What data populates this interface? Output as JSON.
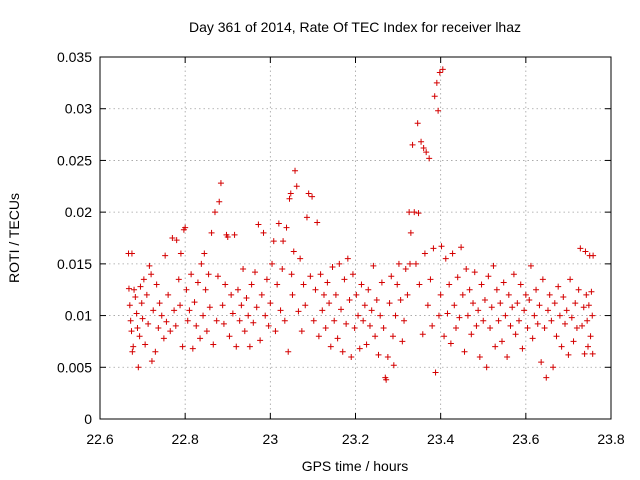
{
  "chart_data": {
    "type": "scatter",
    "title": "Day 361 of 2014, Rate Of TEC Index for receiver lhaz",
    "xlabel": "GPS time / hours",
    "ylabel": "ROTI / TECUs",
    "xlim": [
      22.6,
      23.8
    ],
    "ylim": [
      0,
      0.035
    ],
    "xticks": [
      "22.6",
      "22.8",
      "23",
      "23.2",
      "23.4",
      "23.6",
      "23.8"
    ],
    "yticks": [
      "0",
      "0.005",
      "0.01",
      "0.015",
      "0.02",
      "0.025",
      "0.03",
      "0.035"
    ],
    "grid": true,
    "marker": "+",
    "color": "#d40000",
    "series": [
      {
        "name": "ROTI",
        "points": [
          [
            22.667,
            0.016
          ],
          [
            22.675,
            0.016
          ],
          [
            22.668,
            0.0126
          ],
          [
            22.67,
            0.011
          ],
          [
            22.672,
            0.0095
          ],
          [
            22.674,
            0.0085
          ],
          [
            22.676,
            0.0065
          ],
          [
            22.678,
            0.007
          ],
          [
            22.68,
            0.0125
          ],
          [
            22.683,
            0.0118
          ],
          [
            22.686,
            0.0102
          ],
          [
            22.688,
            0.0088
          ],
          [
            22.69,
            0.005
          ],
          [
            22.693,
            0.008
          ],
          [
            22.695,
            0.0128
          ],
          [
            22.698,
            0.0112
          ],
          [
            22.7,
            0.0097
          ],
          [
            22.703,
            0.0135
          ],
          [
            22.706,
            0.0072
          ],
          [
            22.71,
            0.012
          ],
          [
            22.713,
            0.0092
          ],
          [
            22.716,
            0.0148
          ],
          [
            22.72,
            0.014
          ],
          [
            22.722,
            0.0056
          ],
          [
            22.725,
            0.0105
          ],
          [
            22.73,
            0.0065
          ],
          [
            22.733,
            0.013
          ],
          [
            22.737,
            0.0088
          ],
          [
            22.74,
            0.0112
          ],
          [
            22.745,
            0.01
          ],
          [
            22.75,
            0.0078
          ],
          [
            22.753,
            0.0158
          ],
          [
            22.756,
            0.0094
          ],
          [
            22.76,
            0.012
          ],
          [
            22.765,
            0.0085
          ],
          [
            22.77,
            0.0175
          ],
          [
            22.774,
            0.0105
          ],
          [
            22.778,
            0.009
          ],
          [
            22.78,
            0.0173
          ],
          [
            22.785,
            0.0135
          ],
          [
            22.788,
            0.011
          ],
          [
            22.79,
            0.016
          ],
          [
            22.794,
            0.007
          ],
          [
            22.797,
            0.0183
          ],
          [
            22.8,
            0.0185
          ],
          [
            22.803,
            0.0125
          ],
          [
            22.806,
            0.0095
          ],
          [
            22.81,
            0.0105
          ],
          [
            22.814,
            0.014
          ],
          [
            22.818,
            0.0068
          ],
          [
            22.822,
            0.0113
          ],
          [
            22.826,
            0.009
          ],
          [
            22.83,
            0.0132
          ],
          [
            22.835,
            0.0078
          ],
          [
            22.838,
            0.015
          ],
          [
            22.842,
            0.01
          ],
          [
            22.845,
            0.016
          ],
          [
            22.848,
            0.0125
          ],
          [
            22.851,
            0.0085
          ],
          [
            22.855,
            0.014
          ],
          [
            22.858,
            0.0108
          ],
          [
            22.862,
            0.018
          ],
          [
            22.866,
            0.0072
          ],
          [
            22.87,
            0.02
          ],
          [
            22.874,
            0.0095
          ],
          [
            22.877,
            0.0138
          ],
          [
            22.88,
            0.021
          ],
          [
            22.884,
            0.0228
          ],
          [
            22.888,
            0.011
          ],
          [
            22.891,
            0.0092
          ],
          [
            22.894,
            0.013
          ],
          [
            22.897,
            0.0178
          ],
          [
            22.9,
            0.0176
          ],
          [
            22.904,
            0.008
          ],
          [
            22.908,
            0.012
          ],
          [
            22.912,
            0.0102
          ],
          [
            22.916,
            0.0178
          ],
          [
            22.92,
            0.007
          ],
          [
            22.924,
            0.0125
          ],
          [
            22.928,
            0.0095
          ],
          [
            22.932,
            0.011
          ],
          [
            22.936,
            0.0145
          ],
          [
            22.94,
            0.0085
          ],
          [
            22.944,
            0.0117
          ],
          [
            22.948,
            0.01
          ],
          [
            22.952,
            0.007
          ],
          [
            22.956,
            0.013
          ],
          [
            22.96,
            0.0093
          ],
          [
            22.964,
            0.0142
          ],
          [
            22.968,
            0.0108
          ],
          [
            22.972,
            0.0188
          ],
          [
            22.976,
            0.0076
          ],
          [
            22.98,
            0.012
          ],
          [
            22.984,
            0.018
          ],
          [
            22.988,
            0.01
          ],
          [
            22.992,
            0.0135
          ],
          [
            22.996,
            0.009
          ],
          [
            23.0,
            0.0112
          ],
          [
            23.004,
            0.015
          ],
          [
            23.008,
            0.0172
          ],
          [
            23.012,
            0.0085
          ],
          [
            23.016,
            0.013
          ],
          [
            23.02,
            0.0189
          ],
          [
            23.024,
            0.0105
          ],
          [
            23.028,
            0.0145
          ],
          [
            23.03,
            0.0172
          ],
          [
            23.034,
            0.0095
          ],
          [
            23.038,
            0.0185
          ],
          [
            23.042,
            0.0065
          ],
          [
            23.045,
            0.0213
          ],
          [
            23.048,
            0.0218
          ],
          [
            23.05,
            0.014
          ],
          [
            23.052,
            0.012
          ],
          [
            23.055,
            0.0162
          ],
          [
            23.058,
            0.024
          ],
          [
            23.062,
            0.0225
          ],
          [
            23.066,
            0.0104
          ],
          [
            23.07,
            0.0155
          ],
          [
            23.074,
            0.0085
          ],
          [
            23.078,
            0.013
          ],
          [
            23.082,
            0.011
          ],
          [
            23.086,
            0.0195
          ],
          [
            23.09,
            0.0218
          ],
          [
            23.094,
            0.0138
          ],
          [
            23.098,
            0.0215
          ],
          [
            23.102,
            0.0095
          ],
          [
            23.106,
            0.0125
          ],
          [
            23.11,
            0.019
          ],
          [
            23.114,
            0.008
          ],
          [
            23.118,
            0.014
          ],
          [
            23.122,
            0.0105
          ],
          [
            23.126,
            0.012
          ],
          [
            23.13,
            0.0088
          ],
          [
            23.134,
            0.0132
          ],
          [
            23.138,
            0.0112
          ],
          [
            23.142,
            0.007
          ],
          [
            23.146,
            0.0147
          ],
          [
            23.15,
            0.0095
          ],
          [
            23.154,
            0.012
          ],
          [
            23.158,
            0.0078
          ],
          [
            23.162,
            0.015
          ],
          [
            23.166,
            0.0106
          ],
          [
            23.17,
            0.0065
          ],
          [
            23.174,
            0.0135
          ],
          [
            23.178,
            0.0092
          ],
          [
            23.182,
            0.0155
          ],
          [
            23.186,
            0.0115
          ],
          [
            23.19,
            0.006
          ],
          [
            23.194,
            0.014
          ],
          [
            23.198,
            0.0088
          ],
          [
            23.202,
            0.012
          ],
          [
            23.206,
            0.01
          ],
          [
            23.21,
            0.0068
          ],
          [
            23.214,
            0.013
          ],
          [
            23.218,
            0.0095
          ],
          [
            23.222,
            0.011
          ],
          [
            23.226,
            0.0072
          ],
          [
            23.23,
            0.0125
          ],
          [
            23.234,
            0.009
          ],
          [
            23.238,
            0.0105
          ],
          [
            23.242,
            0.0148
          ],
          [
            23.246,
            0.008
          ],
          [
            23.25,
            0.0115
          ],
          [
            23.254,
            0.0062
          ],
          [
            23.258,
            0.01
          ],
          [
            23.262,
            0.0132
          ],
          [
            23.266,
            0.0088
          ],
          [
            23.27,
            0.004
          ],
          [
            23.272,
            0.0038
          ],
          [
            23.276,
            0.006
          ],
          [
            23.28,
            0.0112
          ],
          [
            23.284,
            0.0138
          ],
          [
            23.288,
            0.008
          ],
          [
            23.29,
            0.0052
          ],
          [
            23.294,
            0.01
          ],
          [
            23.298,
            0.013
          ],
          [
            23.302,
            0.015
          ],
          [
            23.306,
            0.0115
          ],
          [
            23.31,
            0.0075
          ],
          [
            23.314,
            0.0095
          ],
          [
            23.318,
            0.0145
          ],
          [
            23.322,
            0.012
          ],
          [
            23.326,
            0.02
          ],
          [
            23.328,
            0.015
          ],
          [
            23.33,
            0.018
          ],
          [
            23.334,
            0.0265
          ],
          [
            23.338,
            0.02
          ],
          [
            23.342,
            0.015
          ],
          [
            23.346,
            0.0286
          ],
          [
            23.348,
            0.0199
          ],
          [
            23.35,
            0.013
          ],
          [
            23.354,
            0.0268
          ],
          [
            23.358,
            0.0082
          ],
          [
            23.36,
            0.0262
          ],
          [
            23.363,
            0.016
          ],
          [
            23.366,
            0.0258
          ],
          [
            23.37,
            0.011
          ],
          [
            23.373,
            0.0252
          ],
          [
            23.376,
            0.0135
          ],
          [
            23.38,
            0.009
          ],
          [
            23.383,
            0.0165
          ],
          [
            23.386,
            0.0312
          ],
          [
            23.388,
            0.0045
          ],
          [
            23.391,
            0.0325
          ],
          [
            23.394,
            0.0298
          ],
          [
            23.396,
            0.01
          ],
          [
            23.398,
            0.0335
          ],
          [
            23.4,
            0.012
          ],
          [
            23.402,
            0.0167
          ],
          [
            23.405,
            0.0338
          ],
          [
            23.408,
            0.008
          ],
          [
            23.412,
            0.0155
          ],
          [
            23.416,
            0.0102
          ],
          [
            23.42,
            0.013
          ],
          [
            23.424,
            0.0073
          ],
          [
            23.428,
            0.016
          ],
          [
            23.432,
            0.011
          ],
          [
            23.436,
            0.0088
          ],
          [
            23.44,
            0.0137
          ],
          [
            23.444,
            0.0098
          ],
          [
            23.448,
            0.0166
          ],
          [
            23.452,
            0.012
          ],
          [
            23.456,
            0.0065
          ],
          [
            23.46,
            0.0145
          ],
          [
            23.464,
            0.01
          ],
          [
            23.468,
            0.0125
          ],
          [
            23.472,
            0.0082
          ],
          [
            23.476,
            0.0112
          ],
          [
            23.48,
            0.0142
          ],
          [
            23.484,
            0.009
          ],
          [
            23.488,
            0.0105
          ],
          [
            23.492,
            0.006
          ],
          [
            23.496,
            0.013
          ],
          [
            23.5,
            0.0095
          ],
          [
            23.504,
            0.0115
          ],
          [
            23.508,
            0.005
          ],
          [
            23.512,
            0.0138
          ],
          [
            23.516,
            0.0088
          ],
          [
            23.52,
            0.0108
          ],
          [
            23.524,
            0.0148
          ],
          [
            23.528,
            0.007
          ],
          [
            23.532,
            0.0125
          ],
          [
            23.536,
            0.0095
          ],
          [
            23.54,
            0.0112
          ],
          [
            23.544,
            0.0075
          ],
          [
            23.548,
            0.0132
          ],
          [
            23.552,
            0.01
          ],
          [
            23.556,
            0.006
          ],
          [
            23.56,
            0.012
          ],
          [
            23.564,
            0.009
          ],
          [
            23.568,
            0.0108
          ],
          [
            23.572,
            0.014
          ],
          [
            23.576,
            0.0082
          ],
          [
            23.58,
            0.0112
          ],
          [
            23.584,
            0.0095
          ],
          [
            23.588,
            0.013
          ],
          [
            23.592,
            0.0068
          ],
          [
            23.596,
            0.0105
          ],
          [
            23.6,
            0.012
          ],
          [
            23.604,
            0.0088
          ],
          [
            23.608,
            0.0115
          ],
          [
            23.612,
            0.0148
          ],
          [
            23.616,
            0.0078
          ],
          [
            23.62,
            0.01
          ],
          [
            23.624,
            0.0125
          ],
          [
            23.628,
            0.0092
          ],
          [
            23.632,
            0.011
          ],
          [
            23.636,
            0.0055
          ],
          [
            23.64,
            0.0135
          ],
          [
            23.644,
            0.0088
          ],
          [
            23.648,
            0.004
          ],
          [
            23.652,
            0.0105
          ],
          [
            23.656,
            0.012
          ],
          [
            23.66,
            0.0095
          ],
          [
            23.664,
            0.005
          ],
          [
            23.668,
            0.0112
          ],
          [
            23.672,
            0.008
          ],
          [
            23.676,
            0.0128
          ],
          [
            23.68,
            0.01
          ],
          [
            23.684,
            0.007
          ],
          [
            23.688,
            0.0118
          ],
          [
            23.692,
            0.0092
          ],
          [
            23.696,
            0.0105
          ],
          [
            23.7,
            0.0062
          ],
          [
            23.704,
            0.0135
          ],
          [
            23.708,
            0.0098
          ],
          [
            23.712,
            0.0075
          ],
          [
            23.716,
            0.0112
          ],
          [
            23.72,
            0.0088
          ],
          [
            23.724,
            0.0125
          ],
          [
            23.728,
            0.0165
          ],
          [
            23.732,
            0.009
          ],
          [
            23.736,
            0.0108
          ],
          [
            23.738,
            0.0063
          ],
          [
            23.74,
            0.0162
          ],
          [
            23.742,
            0.012
          ],
          [
            23.744,
            0.0095
          ],
          [
            23.746,
            0.007
          ],
          [
            23.748,
            0.011
          ],
          [
            23.75,
            0.0158
          ],
          [
            23.752,
            0.008
          ],
          [
            23.754,
            0.0123
          ],
          [
            23.756,
            0.01
          ],
          [
            23.757,
            0.0063
          ],
          [
            23.758,
            0.0158
          ]
        ]
      }
    ]
  }
}
